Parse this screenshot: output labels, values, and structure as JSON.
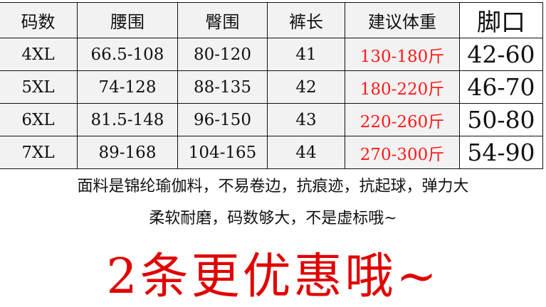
{
  "table": {
    "headers": [
      "码数",
      "腰围",
      "臀围",
      "裤长",
      "建议体重",
      "脚口"
    ],
    "rows": [
      [
        "4XL",
        "66.5-108",
        "80-120",
        "41",
        "130-180斤",
        "42-60"
      ],
      [
        "5XL",
        "74-128",
        "88-135",
        "42",
        "180-220斤",
        "46-70"
      ],
      [
        "6XL",
        "81.5-148",
        "96-150",
        "43",
        "220-260斤",
        "50-80"
      ],
      [
        "7XL",
        "89-168",
        "104-165",
        "44",
        "270-300斤",
        "54-90"
      ]
    ]
  },
  "description_line1": "面料是锦纶瑜伽料，不易卷边，抗痕迹，抗起球，弹力大",
  "description_line2": "柔软耐磨，码数够大，不是虚标哦~",
  "promo": "2条更优惠哦~",
  "colors": {
    "weight_text": "#ff1a1a",
    "promo": "#e00000",
    "cell_bg": "#f2f2f2"
  }
}
